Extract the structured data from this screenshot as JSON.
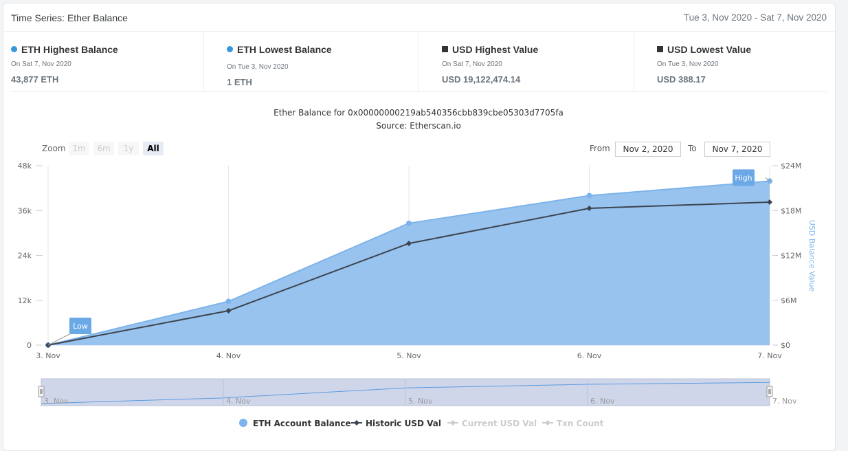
{
  "header": {
    "title": "Time Series: Ether Balance",
    "range": "Tue 3, Nov 2020 - Sat 7, Nov 2020"
  },
  "stats": [
    {
      "title": "ETH Highest Balance",
      "date": "On Sat 7, Nov 2020",
      "value": "43,877 ETH"
    },
    {
      "title": "ETH Lowest Balance",
      "date": "On Tue 3, Nov 2020",
      "value": "1 ETH"
    },
    {
      "title": "USD Highest Value",
      "date": "On Sat 7, Nov 2020",
      "value": "USD 19,122,474.14"
    },
    {
      "title": "USD Lowest Value",
      "date": "On Tue 3, Nov 2020",
      "value": "USD 388.17"
    }
  ],
  "zoom": {
    "label": "Zoom",
    "buttons": [
      "1m",
      "6m",
      "1y",
      "All"
    ],
    "active": "All"
  },
  "range_selector": {
    "from_label": "From",
    "from_value": "Nov 2, 2020",
    "to_label": "To",
    "to_value": "Nov 7, 2020"
  },
  "colors": {
    "area": "#97c3ee",
    "area_line": "#7db3ea",
    "usd_line": "#3d4450",
    "accent": "#3498db",
    "label_bg": "#6aa8e6"
  },
  "chart_data": {
    "type": "area",
    "title": "Ether Balance for 0x00000000219ab540356cbb839cbe05303d7705fa",
    "subtitle": "Source: Etherscan.io",
    "categories": [
      "3. Nov",
      "4. Nov",
      "5. Nov",
      "6. Nov",
      "7. Nov"
    ],
    "y_left": {
      "ticks": [
        "0",
        "12k",
        "24k",
        "36k",
        "48k"
      ],
      "range": [
        0,
        48000
      ]
    },
    "y_right": {
      "label": "USD Balance Value",
      "ticks": [
        "$0",
        "$6M",
        "$12M",
        "$18M",
        "$24M"
      ],
      "range": [
        0,
        24000000
      ]
    },
    "series": [
      {
        "name": "ETH Account Balance",
        "type": "area",
        "axis": "left",
        "values": [
          1,
          11700,
          32600,
          40000,
          43877
        ]
      },
      {
        "name": "Historic USD Val",
        "type": "line",
        "axis": "right",
        "values": [
          388.17,
          4600000,
          13600000,
          18300000,
          19122474.14
        ]
      }
    ],
    "annotations": [
      {
        "text": "Low",
        "index": 0
      },
      {
        "text": "High",
        "index": 4
      }
    ],
    "legend": [
      {
        "name": "ETH Account Balance",
        "enabled": true
      },
      {
        "name": "Historic USD Val",
        "enabled": true
      },
      {
        "name": "Current USD Val",
        "enabled": false
      },
      {
        "name": "Txn Count",
        "enabled": false
      }
    ]
  }
}
